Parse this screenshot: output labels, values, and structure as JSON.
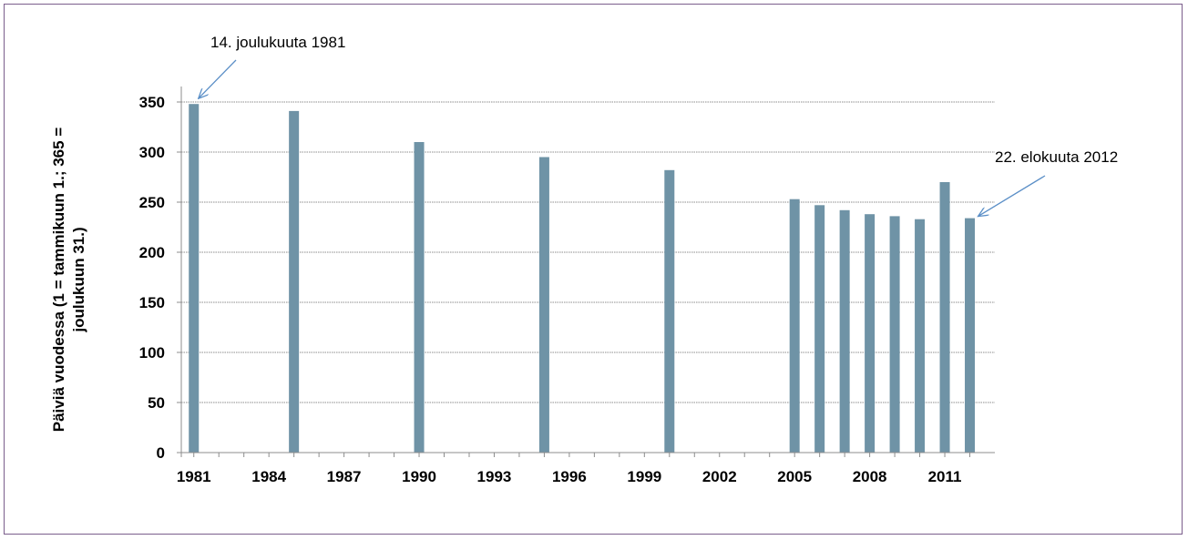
{
  "chart_data": {
    "type": "bar",
    "title": "",
    "xlabel": "",
    "ylabel_lines": [
      "Päiviä vuodessa (1 = tammikuun 1.; 365 =",
      "joulukuun 31.)"
    ],
    "x": [
      1981,
      1985,
      1990,
      1995,
      2000,
      2005,
      2006,
      2007,
      2008,
      2009,
      2010,
      2011,
      2012
    ],
    "values": [
      348,
      341,
      310,
      295,
      282,
      253,
      247,
      242,
      238,
      236,
      233,
      270,
      234
    ],
    "xlim": [
      1980.5,
      2013
    ],
    "ylim": [
      0,
      350
    ],
    "yticks": [
      0,
      50,
      100,
      150,
      200,
      250,
      300,
      350
    ],
    "xticks": [
      1981,
      1984,
      1987,
      1990,
      1993,
      1996,
      1999,
      2002,
      2005,
      2008,
      2011
    ],
    "grid": true,
    "bar_color": "#6f93a6",
    "arrow_color": "#5b8fc7",
    "annotations": [
      {
        "text": "14. joulukuuta 1981",
        "x": 1981,
        "y": 348
      },
      {
        "text": "22. elokuuta 2012",
        "x": 2012,
        "y": 234
      }
    ]
  }
}
